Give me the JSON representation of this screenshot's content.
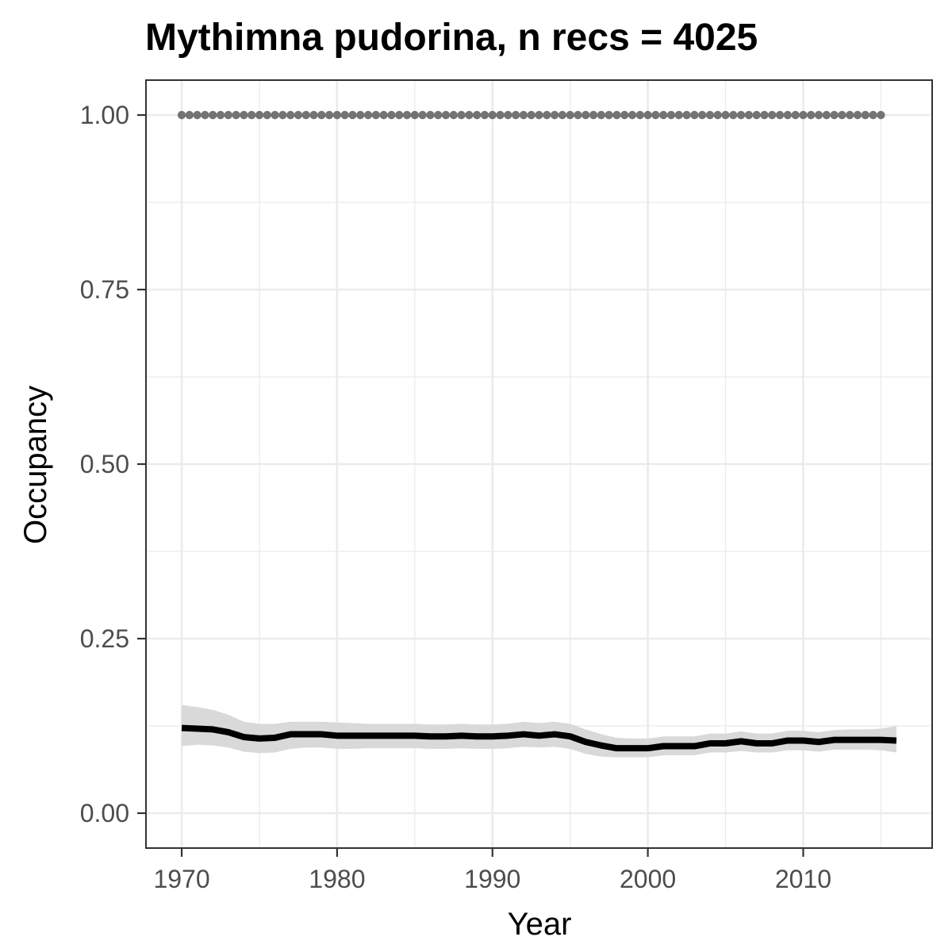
{
  "chart_data": {
    "type": "line",
    "title": "Mythimna pudorina, n recs = 4025",
    "xlabel": "Year",
    "ylabel": "Occupancy",
    "xlim": [
      1967.7,
      2018.3
    ],
    "ylim": [
      -0.05,
      1.05
    ],
    "x_ticks": [
      1970,
      1980,
      1990,
      2000,
      2010
    ],
    "x_tick_labels": [
      "1970",
      "1980",
      "1990",
      "2000",
      "2010"
    ],
    "y_ticks": [
      0,
      0.25,
      0.5,
      0.75,
      1.0
    ],
    "y_tick_labels": [
      "0.00",
      "0.25",
      "0.50",
      "0.75",
      "1.00"
    ],
    "grid": true,
    "series": [
      {
        "style": "line-with-ribbon",
        "color": "#000000",
        "ribbon_color": "#d9d9d9",
        "x": [
          1970,
          1971,
          1972,
          1973,
          1974,
          1975,
          1976,
          1977,
          1978,
          1979,
          1980,
          1981,
          1982,
          1983,
          1984,
          1985,
          1986,
          1987,
          1988,
          1989,
          1990,
          1991,
          1992,
          1993,
          1994,
          1995,
          1996,
          1997,
          1998,
          1999,
          2000,
          2001,
          2002,
          2003,
          2004,
          2005,
          2006,
          2007,
          2008,
          2009,
          2010,
          2011,
          2012,
          2013,
          2014,
          2015,
          2016
        ],
        "values": [
          0.122,
          0.121,
          0.12,
          0.116,
          0.109,
          0.107,
          0.108,
          0.113,
          0.113,
          0.113,
          0.111,
          0.111,
          0.111,
          0.111,
          0.111,
          0.111,
          0.11,
          0.11,
          0.111,
          0.11,
          0.11,
          0.111,
          0.113,
          0.111,
          0.113,
          0.11,
          0.102,
          0.097,
          0.093,
          0.093,
          0.093,
          0.096,
          0.096,
          0.096,
          0.1,
          0.1,
          0.103,
          0.1,
          0.1,
          0.104,
          0.104,
          0.102,
          0.105,
          0.105,
          0.105,
          0.105,
          0.104
        ],
        "lower": [
          0.096,
          0.098,
          0.097,
          0.094,
          0.088,
          0.086,
          0.087,
          0.092,
          0.094,
          0.094,
          0.092,
          0.092,
          0.093,
          0.093,
          0.093,
          0.093,
          0.092,
          0.092,
          0.093,
          0.092,
          0.092,
          0.093,
          0.095,
          0.094,
          0.095,
          0.092,
          0.085,
          0.081,
          0.08,
          0.08,
          0.08,
          0.083,
          0.083,
          0.083,
          0.087,
          0.087,
          0.089,
          0.087,
          0.087,
          0.09,
          0.09,
          0.088,
          0.091,
          0.091,
          0.091,
          0.09,
          0.087
        ],
        "upper": [
          0.155,
          0.152,
          0.148,
          0.141,
          0.131,
          0.128,
          0.128,
          0.131,
          0.131,
          0.131,
          0.13,
          0.129,
          0.128,
          0.128,
          0.128,
          0.128,
          0.127,
          0.127,
          0.128,
          0.127,
          0.127,
          0.128,
          0.131,
          0.129,
          0.131,
          0.128,
          0.12,
          0.113,
          0.108,
          0.107,
          0.107,
          0.11,
          0.11,
          0.11,
          0.114,
          0.114,
          0.117,
          0.114,
          0.114,
          0.118,
          0.118,
          0.116,
          0.119,
          0.12,
          0.12,
          0.121,
          0.125
        ]
      },
      {
        "style": "dotted",
        "color": "#737373",
        "x": [
          1970,
          1971,
          1972,
          1973,
          1974,
          1975,
          1976,
          1977,
          1978,
          1979,
          1980,
          1981,
          1982,
          1983,
          1984,
          1985,
          1986,
          1987,
          1988,
          1989,
          1990,
          1991,
          1992,
          1993,
          1994,
          1995,
          1996,
          1997,
          1998,
          1999,
          2000,
          2001,
          2002,
          2003,
          2004,
          2005,
          2006,
          2007,
          2008,
          2009,
          2010,
          2011,
          2012,
          2013,
          2014,
          2015
        ],
        "values": [
          1,
          1,
          1,
          1,
          1,
          1,
          1,
          1,
          1,
          1,
          1,
          1,
          1,
          1,
          1,
          1,
          1,
          1,
          1,
          1,
          1,
          1,
          1,
          1,
          1,
          1,
          1,
          1,
          1,
          1,
          1,
          1,
          1,
          1,
          1,
          1,
          1,
          1,
          1,
          1,
          1,
          1,
          1,
          1,
          1,
          1
        ]
      }
    ]
  }
}
